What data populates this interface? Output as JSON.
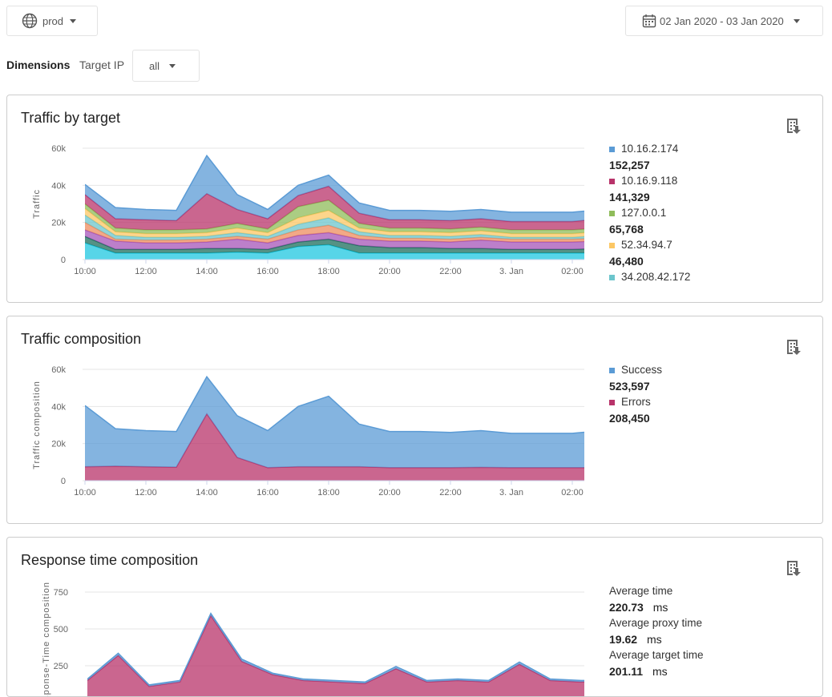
{
  "toolbar": {
    "env": "prod",
    "date_range": "02 Jan 2020 - 03 Jan 2020",
    "dimensions_label": "Dimensions",
    "target_ip_label": "Target IP",
    "target_ip_value": "all"
  },
  "colors": {
    "blue": "#5b9bd5",
    "magenta": "#b8336a",
    "green": "#8fbc5a",
    "yellow": "#fcc764",
    "teal": "#6cc5cc",
    "orange": "#ee8c5e",
    "purple": "#a554b8",
    "darkgreen": "#1c6e5c",
    "cyan": "#1fc7e0"
  },
  "cards": [
    {
      "title": "Traffic by target",
      "icon": "download-report-icon",
      "legend": [
        {
          "name": "10.16.2.174",
          "value": "152,257",
          "color": "#5b9bd5"
        },
        {
          "name": "10.16.9.118",
          "value": "141,329",
          "color": "#b8336a"
        },
        {
          "name": "127.0.0.1",
          "value": "65,768",
          "color": "#8fbc5a"
        },
        {
          "name": "52.34.94.7",
          "value": "46,480",
          "color": "#fcc764"
        },
        {
          "name": "34.208.42.172",
          "value": "",
          "color": "#6cc5cc"
        }
      ]
    },
    {
      "title": "Traffic composition",
      "icon": "download-report-icon",
      "legend": [
        {
          "name": "Success",
          "value": "523,597",
          "color": "#5b9bd5"
        },
        {
          "name": "Errors",
          "value": "208,450",
          "color": "#b8336a"
        }
      ]
    },
    {
      "title": "Response time composition",
      "icon": "download-report-icon",
      "stats": [
        {
          "label": "Average time",
          "value": "220.73",
          "unit": "ms"
        },
        {
          "label": "Average proxy time",
          "value": "19.62",
          "unit": "ms"
        },
        {
          "label": "Average target time",
          "value": "201.11",
          "unit": "ms"
        }
      ]
    }
  ],
  "chart_data": [
    {
      "type": "area",
      "stacked": true,
      "ylabel": "Traffic",
      "yticks": [
        "0",
        "20k",
        "40k",
        "60k"
      ],
      "ylim": [
        0,
        60000
      ],
      "x": [
        "10:00",
        "11:00",
        "12:00",
        "13:00",
        "14:00",
        "15:00",
        "16:00",
        "17:00",
        "18:00",
        "19:00",
        "20:00",
        "21:00",
        "22:00",
        "23:00",
        "00:00",
        "01:00",
        "02:00",
        "03:00"
      ],
      "xticks": [
        "10:00",
        "12:00",
        "14:00",
        "16:00",
        "18:00",
        "20:00",
        "22:00",
        "3. Jan",
        "02:00"
      ],
      "series": [
        {
          "color": "#1fc7e0",
          "values": [
            9000,
            3500,
            3500,
            3500,
            3500,
            4000,
            3500,
            7000,
            8000,
            3500,
            3500,
            3500,
            3500,
            3500,
            3500,
            3500,
            3500,
            3500
          ]
        },
        {
          "color": "#1c6e5c",
          "values": [
            3500,
            2000,
            2000,
            2000,
            2500,
            2000,
            2000,
            2500,
            3000,
            4000,
            3000,
            3000,
            2500,
            2500,
            2000,
            2000,
            2000,
            2500
          ]
        },
        {
          "color": "#a554b8",
          "values": [
            3500,
            4500,
            3500,
            3500,
            3500,
            5000,
            3500,
            3500,
            3500,
            3500,
            3500,
            3500,
            3500,
            4500,
            4000,
            4000,
            4000,
            4000
          ]
        },
        {
          "color": "#ee8c5e",
          "values": [
            4000,
            1000,
            1500,
            1500,
            1500,
            1500,
            2000,
            3000,
            4000,
            2000,
            1500,
            1500,
            1500,
            1500,
            1500,
            1500,
            1500,
            1500
          ]
        },
        {
          "name": "34.208.42.172",
          "color": "#6cc5cc",
          "values": [
            4000,
            2000,
            1500,
            1500,
            1500,
            2000,
            1500,
            3000,
            4000,
            2000,
            1500,
            1500,
            1500,
            1500,
            1000,
            1000,
            1000,
            1500
          ]
        },
        {
          "name": "52.34.94.7",
          "color": "#fcc764",
          "values": [
            3500,
            2000,
            2000,
            2000,
            2000,
            2500,
            2000,
            3500,
            4000,
            2000,
            2000,
            2000,
            2000,
            2000,
            2000,
            2000,
            2000,
            2000
          ]
        },
        {
          "name": "127.0.0.1",
          "color": "#8fbc5a",
          "values": [
            2500,
            2000,
            2000,
            2000,
            2000,
            2500,
            2000,
            6000,
            5500,
            2500,
            2000,
            2000,
            2000,
            2000,
            2000,
            2000,
            2000,
            2000
          ]
        },
        {
          "name": "10.16.9.118",
          "color": "#b8336a",
          "values": [
            5000,
            5000,
            5500,
            5000,
            19000,
            7500,
            5500,
            6000,
            7500,
            5500,
            4500,
            4500,
            4500,
            4500,
            4500,
            4500,
            4500,
            5000
          ]
        },
        {
          "name": "10.16.2.174",
          "color": "#5b9bd5",
          "values": [
            5500,
            6000,
            5500,
            5500,
            20500,
            8000,
            5000,
            5500,
            6000,
            5500,
            5000,
            5000,
            5000,
            5000,
            5000,
            5000,
            5000,
            5000
          ]
        }
      ]
    },
    {
      "type": "area",
      "stacked": true,
      "ylabel": "Traffic composition",
      "yticks": [
        "0",
        "20k",
        "40k",
        "60k"
      ],
      "ylim": [
        0,
        60000
      ],
      "x": [
        "10:00",
        "11:00",
        "12:00",
        "13:00",
        "14:00",
        "15:00",
        "16:00",
        "17:00",
        "18:00",
        "19:00",
        "20:00",
        "21:00",
        "22:00",
        "23:00",
        "00:00",
        "01:00",
        "02:00",
        "03:00"
      ],
      "xticks": [
        "10:00",
        "12:00",
        "14:00",
        "16:00",
        "18:00",
        "20:00",
        "22:00",
        "3. Jan",
        "02:00"
      ],
      "series": [
        {
          "name": "Errors",
          "color": "#b8336a",
          "values": [
            7500,
            7800,
            7500,
            7300,
            36000,
            12500,
            7000,
            7500,
            7500,
            7500,
            7000,
            7000,
            7000,
            7200,
            7000,
            7000,
            7000,
            7000
          ]
        },
        {
          "name": "Success",
          "color": "#5b9bd5",
          "values": [
            33000,
            20200,
            19500,
            19200,
            20000,
            22500,
            20000,
            32500,
            38000,
            23000,
            19500,
            19500,
            19000,
            19800,
            18500,
            18500,
            18500,
            20000
          ]
        }
      ]
    },
    {
      "type": "area",
      "stacked": true,
      "ylabel": "Response-Time composition",
      "yticks": [
        "250",
        "500",
        "750"
      ],
      "ylim": [
        0,
        750
      ],
      "x": [
        "10:00",
        "11:00",
        "12:00",
        "13:00",
        "14:00",
        "15:00",
        "16:00",
        "17:00",
        "18:00",
        "19:00",
        "20:00",
        "21:00",
        "22:00",
        "23:00",
        "00:00",
        "01:00",
        "02:00",
        "03:00"
      ],
      "series": [
        {
          "name": "Average target time",
          "color": "#b8336a",
          "values": [
            150,
            320,
            110,
            140,
            590,
            280,
            190,
            150,
            140,
            130,
            230,
            140,
            150,
            140,
            260,
            150,
            140,
            150
          ]
        },
        {
          "name": "Average proxy time",
          "color": "#5b9bd5",
          "values": [
            10,
            15,
            10,
            10,
            15,
            15,
            10,
            10,
            10,
            10,
            15,
            10,
            10,
            10,
            15,
            10,
            10,
            10
          ]
        }
      ]
    }
  ]
}
